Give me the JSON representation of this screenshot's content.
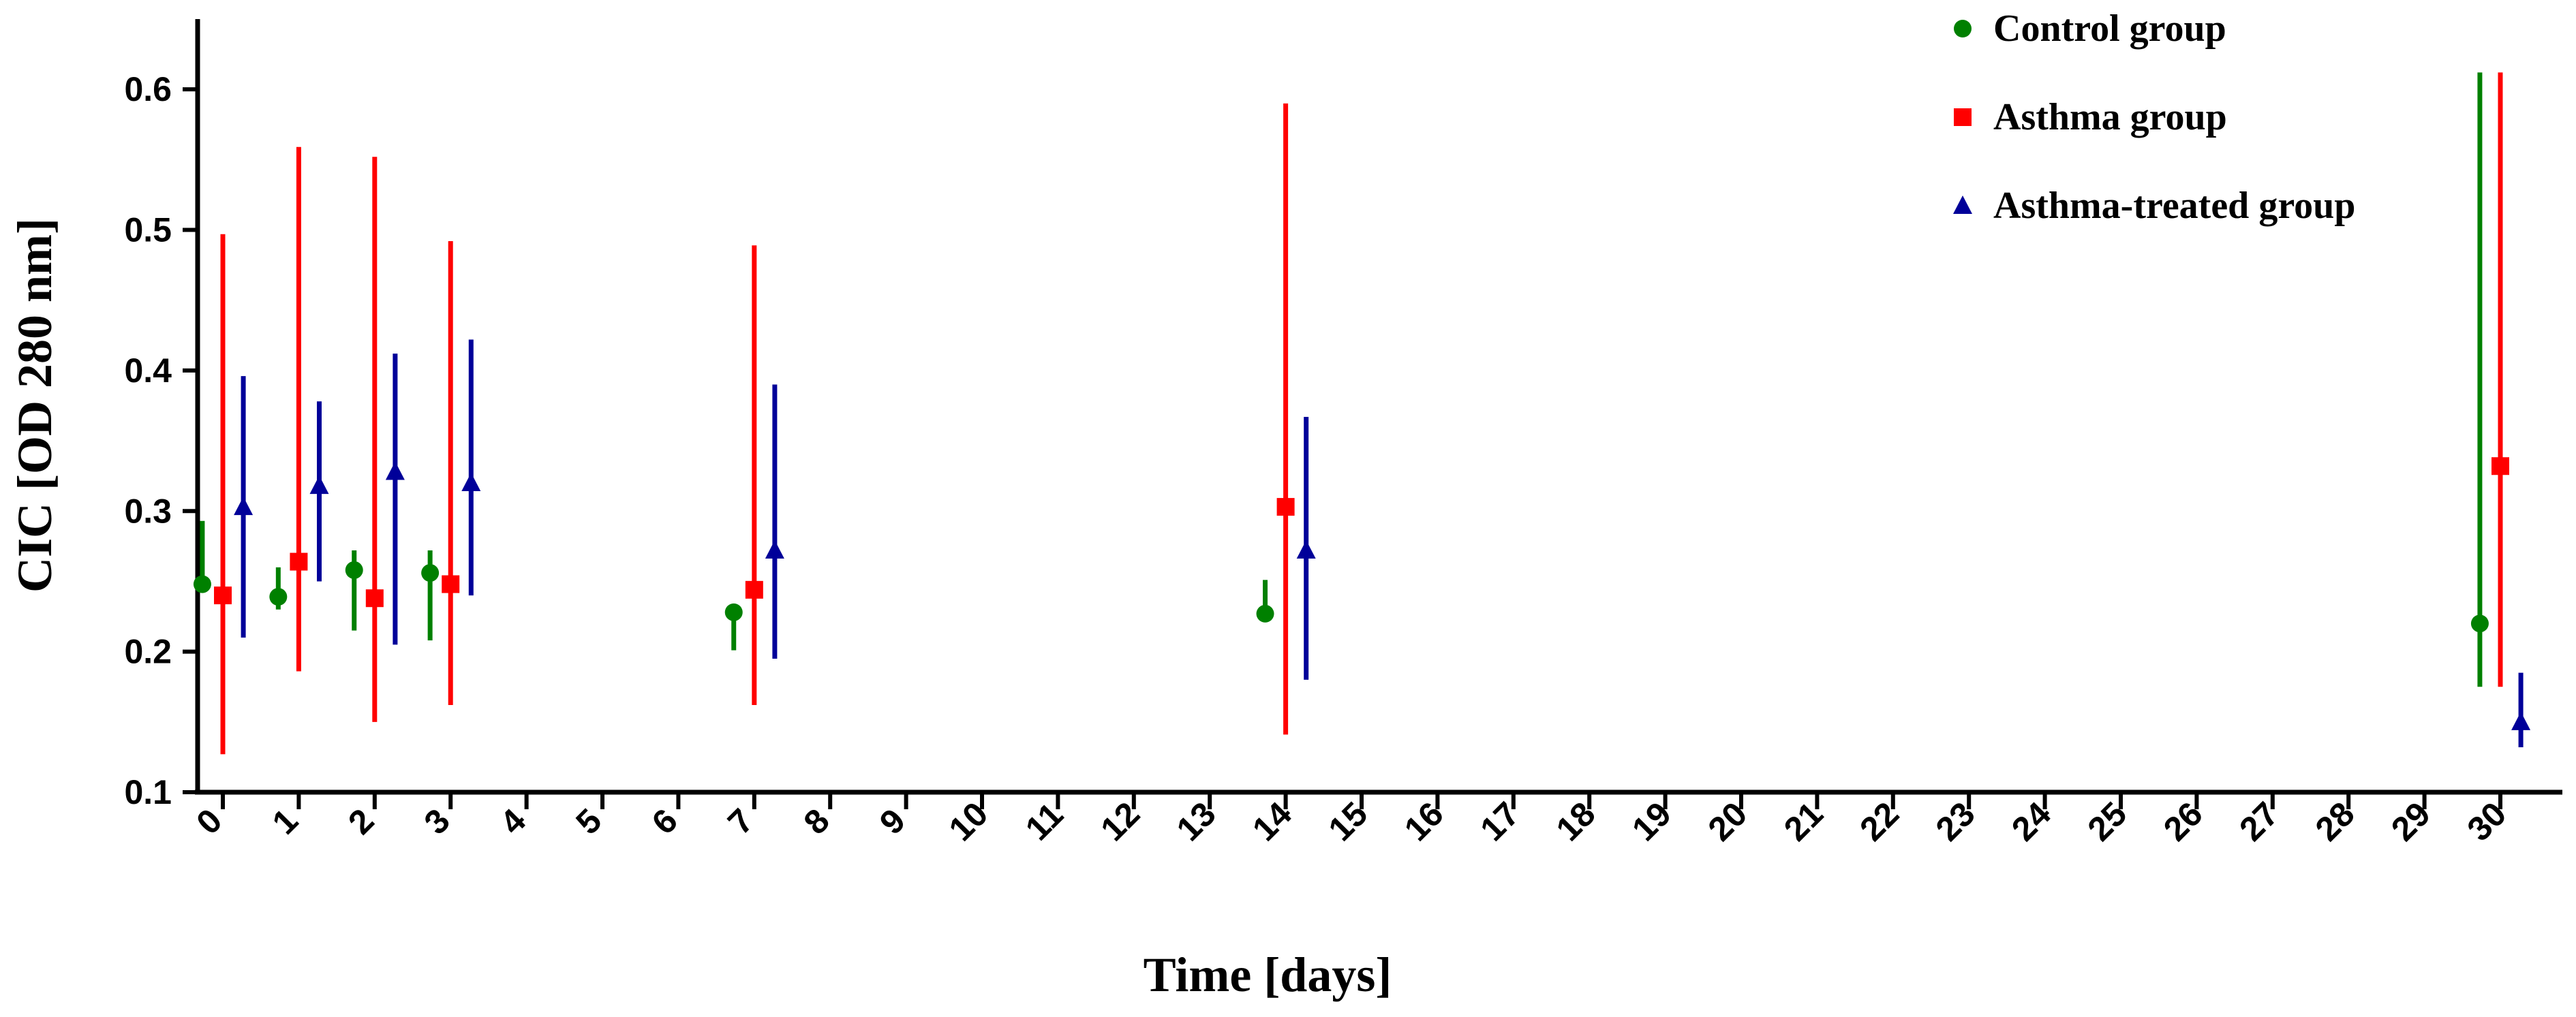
{
  "chart_data": {
    "type": "scatter",
    "title": "",
    "xlabel": "Time [days]",
    "ylabel": "CIC [OD 280 nm]",
    "xlim": [
      -0.5,
      30.5
    ],
    "ylim": [
      0.1,
      0.65
    ],
    "x_ticks": [
      0,
      1,
      2,
      3,
      4,
      5,
      6,
      7,
      8,
      9,
      10,
      11,
      12,
      13,
      14,
      15,
      16,
      17,
      18,
      19,
      20,
      21,
      22,
      23,
      24,
      25,
      26,
      27,
      28,
      29,
      30
    ],
    "x_tick_labels": [
      "0",
      "1",
      "2",
      "3",
      "4",
      "5",
      "6",
      "7",
      "8",
      "9",
      "10",
      "11",
      "12",
      "13",
      "14",
      "15",
      "16",
      "17",
      "18",
      "19",
      "20",
      "21",
      "22",
      "23",
      "24",
      "25",
      "26",
      "27",
      "28",
      "29",
      "30"
    ],
    "y_ticks": [
      0.1,
      0.2,
      0.3,
      0.4,
      0.5,
      0.6
    ],
    "y_tick_labels": [
      "0.1",
      "0.2",
      "0.3",
      "0.4",
      "0.5",
      "0.6"
    ],
    "grid": false,
    "legend_position": "top-right",
    "error_bars": true,
    "series": [
      {
        "name": "Control group",
        "marker": "circle",
        "color": "#008000",
        "offset": -0.27,
        "points": [
          {
            "x": 0,
            "y": 0.248,
            "low": 0.248,
            "high": 0.293
          },
          {
            "x": 1,
            "y": 0.239,
            "low": 0.23,
            "high": 0.26
          },
          {
            "x": 2,
            "y": 0.258,
            "low": 0.215,
            "high": 0.272
          },
          {
            "x": 3,
            "y": 0.256,
            "low": 0.208,
            "high": 0.272
          },
          {
            "x": 7,
            "y": 0.228,
            "low": 0.201,
            "high": 0.228
          },
          {
            "x": 14,
            "y": 0.227,
            "low": 0.227,
            "high": 0.251
          },
          {
            "x": 30,
            "y": 0.22,
            "low": 0.175,
            "high": 0.612
          }
        ]
      },
      {
        "name": "Asthma group",
        "marker": "square",
        "color": "#ff0000",
        "offset": 0,
        "points": [
          {
            "x": 0,
            "y": 0.24,
            "low": 0.127,
            "high": 0.497
          },
          {
            "x": 1,
            "y": 0.264,
            "low": 0.186,
            "high": 0.559
          },
          {
            "x": 2,
            "y": 0.238,
            "low": 0.15,
            "high": 0.552
          },
          {
            "x": 3,
            "y": 0.248,
            "low": 0.162,
            "high": 0.492
          },
          {
            "x": 7,
            "y": 0.244,
            "low": 0.162,
            "high": 0.489
          },
          {
            "x": 14,
            "y": 0.303,
            "low": 0.141,
            "high": 0.59
          },
          {
            "x": 30,
            "y": 0.332,
            "low": 0.175,
            "high": 0.612
          }
        ]
      },
      {
        "name": "Asthma-treated group",
        "marker": "triangle",
        "color": "#000099",
        "offset": 0.27,
        "points": [
          {
            "x": 0,
            "y": 0.303,
            "low": 0.21,
            "high": 0.396
          },
          {
            "x": 1,
            "y": 0.318,
            "low": 0.25,
            "high": 0.378
          },
          {
            "x": 2,
            "y": 0.328,
            "low": 0.205,
            "high": 0.412
          },
          {
            "x": 3,
            "y": 0.32,
            "low": 0.24,
            "high": 0.422
          },
          {
            "x": 7,
            "y": 0.272,
            "low": 0.195,
            "high": 0.39
          },
          {
            "x": 14,
            "y": 0.272,
            "low": 0.18,
            "high": 0.367
          },
          {
            "x": 30,
            "y": 0.15,
            "low": 0.132,
            "high": 0.185
          }
        ]
      }
    ]
  }
}
